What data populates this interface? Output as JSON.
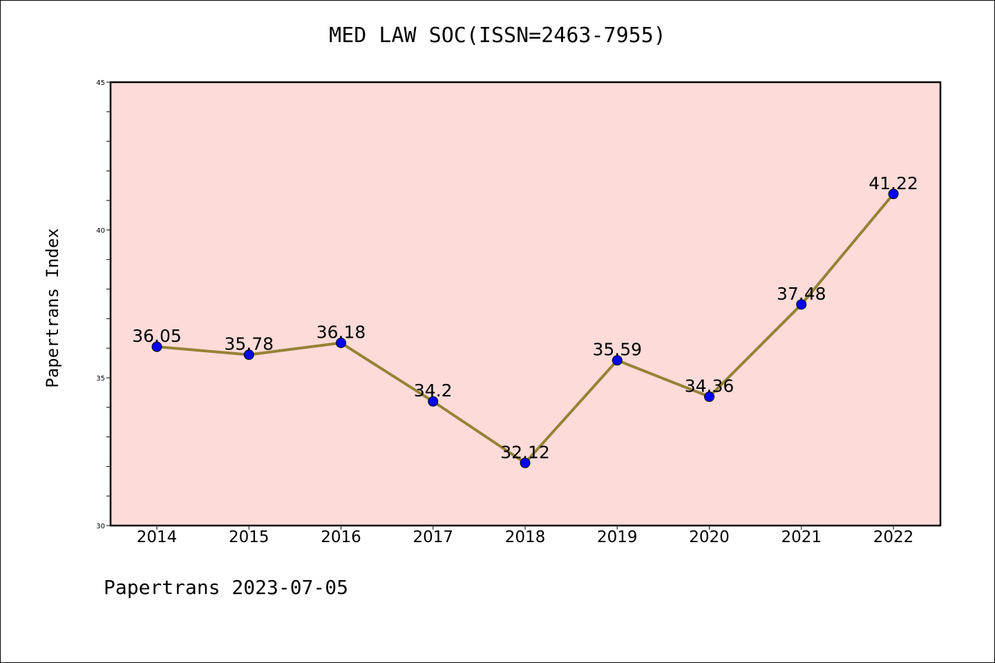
{
  "chart_data": {
    "type": "line",
    "title": "MED LAW SOC(ISSN=2463-7955)",
    "ylabel": "Papertrans Index",
    "xlabel": "",
    "x": [
      "2014",
      "2015",
      "2016",
      "2017",
      "2018",
      "2019",
      "2020",
      "2021",
      "2022"
    ],
    "series": [
      {
        "values": [
          36.05,
          35.78,
          36.18,
          34.2,
          32.12,
          35.59,
          34.36,
          37.48,
          41.22
        ],
        "data_labels": [
          "36.05",
          "35.78",
          "36.18",
          "34.2",
          "32.12",
          "35.59",
          "34.36",
          "37.48",
          "41.22"
        ]
      }
    ],
    "ylim": [
      30,
      45
    ],
    "yticks": [
      "30",
      "35",
      "40",
      "45"
    ],
    "grid": false,
    "line_color": "#968236",
    "marker_color": "#0000ff",
    "plot_background": "#fddbd8"
  },
  "footer": "Papertrans 2023-07-05"
}
